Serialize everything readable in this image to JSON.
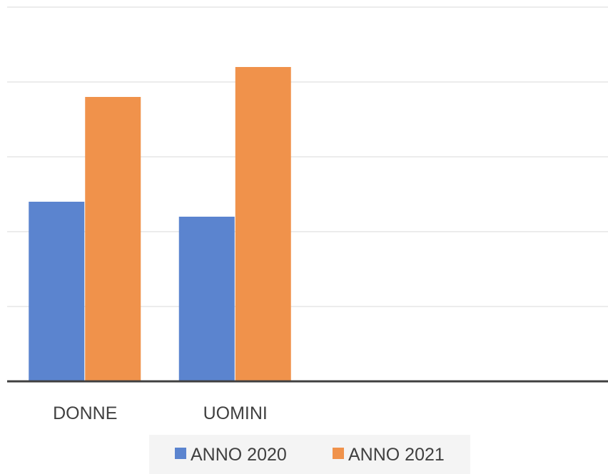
{
  "chart_data": {
    "type": "bar",
    "title": "",
    "xlabel": "",
    "ylabel": "",
    "categories": [
      "DONNE",
      "UOMINI",
      "",
      ""
    ],
    "series": [
      {
        "name": "ANNO 2020",
        "color": "#5b84cf",
        "values": [
          2.4,
          2.2,
          null,
          null
        ]
      },
      {
        "name": "ANNO 2021",
        "color": "#f0924b",
        "values": [
          3.8,
          4.2,
          null,
          null
        ]
      }
    ],
    "ylim": [
      0,
      5
    ],
    "yticks": [
      0,
      1,
      2,
      3,
      4,
      5
    ],
    "show_ytick_labels": false,
    "grid": true,
    "legend_position": "bottom"
  }
}
